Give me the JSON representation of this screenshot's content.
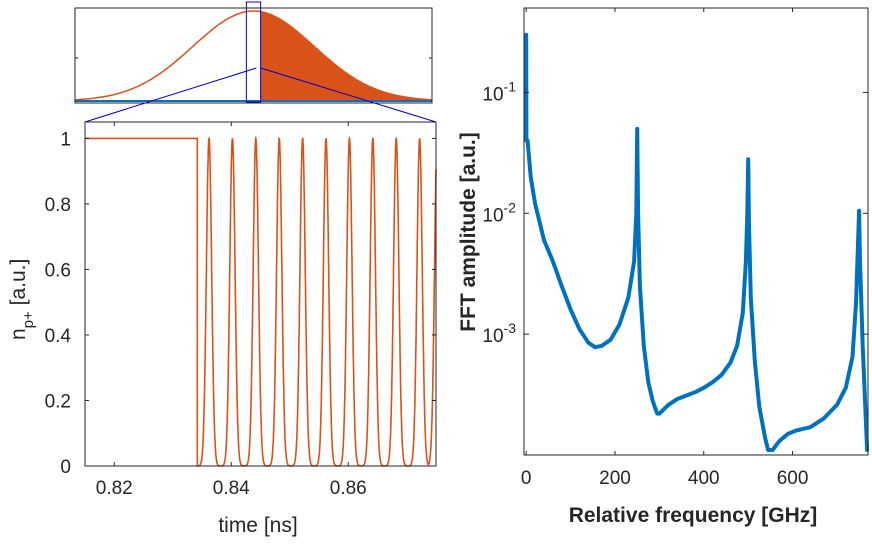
{
  "chart_data": [
    {
      "id": "overview",
      "type": "line",
      "title": "",
      "xlabel": "",
      "ylabel": "",
      "xticks": [],
      "yticks": [],
      "series": [
        {
          "name": "pulse envelope",
          "color": "#D95319",
          "shape": "gaussian",
          "peak_x": 0.5,
          "width": 0.17,
          "peak": 1.0
        },
        {
          "name": "filled region",
          "color": "#D95319",
          "fill_from_x": 0.52
        },
        {
          "name": "baseline",
          "color": "#0072BD",
          "value": 0
        }
      ],
      "zoom_box": {
        "color": "#0000CC",
        "x_range": [
          0.48,
          0.52
        ]
      }
    },
    {
      "id": "zoom",
      "type": "line",
      "title": "",
      "xlabel": "time [ns]",
      "ylabel_main": "n",
      "ylabel_sub": "p+",
      "ylabel_suffix": " [a.u.]",
      "xlim": [
        0.815,
        0.875
      ],
      "ylim": [
        0,
        1.05
      ],
      "xticks": [
        0.82,
        0.84,
        0.86
      ],
      "xtick_labels": [
        "0.82",
        "0.84",
        "0.86"
      ],
      "yticks": [
        0,
        0.2,
        0.4,
        0.6,
        0.8,
        1
      ],
      "ytick_labels": [
        "0",
        "0.2",
        "0.4",
        "0.6",
        "0.8",
        "1"
      ],
      "series": [
        {
          "name": "n_p+",
          "color": "#D95319",
          "step": {
            "from": 0.815,
            "to": 0.8342,
            "value": 1
          },
          "pulse_centers": [
            0.8362,
            0.8402,
            0.8442,
            0.8482,
            0.8522,
            0.8562,
            0.8602,
            0.8642,
            0.8682,
            0.8722,
            0.8752
          ],
          "pulse_sigma": 0.00045,
          "pulse_peak": 1
        }
      ]
    },
    {
      "id": "fft",
      "type": "line",
      "title": "",
      "xlabel": "Relative frequency [GHz]",
      "ylabel": "FFT amplitude [a.u.]",
      "yscale": "log",
      "xlim": [
        -5,
        770
      ],
      "ylim": [
        0.0001,
        0.5
      ],
      "xticks": [
        0,
        200,
        400,
        600
      ],
      "xtick_labels": [
        "0",
        "200",
        "400",
        "600"
      ],
      "yticks": [
        0.001,
        0.01,
        0.1
      ],
      "ytick_base": "10",
      "ytick_exponents": [
        "-3",
        "-2",
        "-1"
      ],
      "series": [
        {
          "name": "FFT amplitude",
          "color": "#0072BD",
          "points": [
            [
              0,
              0.3
            ],
            [
              0.5,
              0.04
            ],
            [
              3,
              0.04
            ],
            [
              10,
              0.02
            ],
            [
              20,
              0.012
            ],
            [
              40,
              0.006
            ],
            [
              60,
              0.004
            ],
            [
              80,
              0.0025
            ],
            [
              100,
              0.0016
            ],
            [
              120,
              0.0011
            ],
            [
              140,
              0.00085
            ],
            [
              155,
              0.00078
            ],
            [
              170,
              0.0008
            ],
            [
              190,
              0.0009
            ],
            [
              210,
              0.0012
            ],
            [
              230,
              0.002
            ],
            [
              243,
              0.004
            ],
            [
              248,
              0.01
            ],
            [
              250,
              0.05
            ],
            [
              252,
              0.01
            ],
            [
              256,
              0.0025
            ],
            [
              265,
              0.0008
            ],
            [
              275,
              0.0004
            ],
            [
              285,
              0.00028
            ],
            [
              295,
              0.00022
            ],
            [
              300,
              0.00022
            ],
            [
              320,
              0.00026
            ],
            [
              340,
              0.00029
            ],
            [
              360,
              0.00031
            ],
            [
              380,
              0.00033
            ],
            [
              400,
              0.00036
            ],
            [
              420,
              0.0004
            ],
            [
              440,
              0.00046
            ],
            [
              460,
              0.00058
            ],
            [
              475,
              0.0008
            ],
            [
              488,
              0.0015
            ],
            [
              495,
              0.004
            ],
            [
              498,
              0.01
            ],
            [
              500,
              0.028
            ],
            [
              502,
              0.008
            ],
            [
              506,
              0.002
            ],
            [
              515,
              0.0006
            ],
            [
              525,
              0.00025
            ],
            [
              538,
              0.00014
            ],
            [
              545,
              0.00011
            ],
            [
              555,
              0.00011
            ],
            [
              570,
              0.00013
            ],
            [
              590,
              0.00015
            ],
            [
              610,
              0.00016
            ],
            [
              640,
              0.00017
            ],
            [
              670,
              0.0002
            ],
            [
              700,
              0.00026
            ],
            [
              720,
              0.00036
            ],
            [
              735,
              0.00065
            ],
            [
              743,
              0.0018
            ],
            [
              747,
              0.005
            ],
            [
              750,
              0.0105
            ],
            [
              752,
              0.004
            ],
            [
              758,
              0.0008
            ],
            [
              764,
              0.00025
            ],
            [
              768,
              0.00011
            ]
          ]
        }
      ]
    }
  ]
}
